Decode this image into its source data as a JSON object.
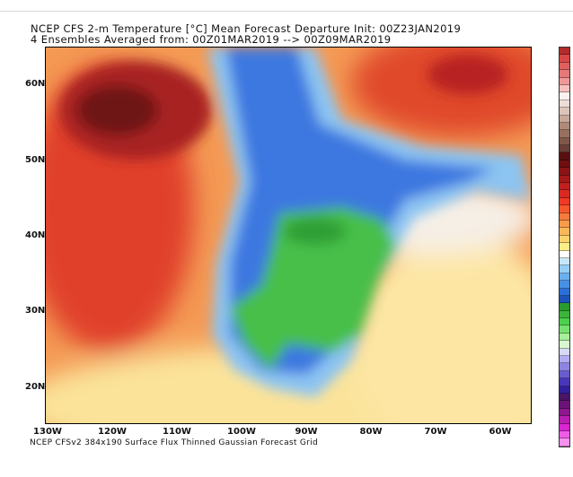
{
  "title": {
    "line1": "NCEP CFS 2-m Temperature [°C] Mean Forecast Departure Init: 00Z23JAN2019",
    "line2": "4 Ensembles Averaged from: 00Z01MAR2019 --> 00Z09MAR2019"
  },
  "footer": "NCEP CFSv2 384x190 Surface Flux Thinned Gaussian Forecast Grid",
  "lat_labels": [
    "60N",
    "50N",
    "40N",
    "30N",
    "20N"
  ],
  "lon_labels": [
    "130W",
    "120W",
    "110W",
    "100W",
    "90W",
    "80W",
    "70W",
    "60W"
  ],
  "colorbar": [
    "#b22b2b",
    "#d94848",
    "#e06060",
    "#e57878",
    "#ee9898",
    "#f6c0c0",
    "#faf0ee",
    "#eedcd6",
    "#dcc4b8",
    "#c8a898",
    "#b08a78",
    "#987060",
    "#80584a",
    "#6a4036",
    "#5a1010",
    "#6e1010",
    "#8a1414",
    "#a41a1a",
    "#c02020",
    "#d82a22",
    "#ee3a26",
    "#f4582e",
    "#f57a3c",
    "#f79a4a",
    "#f9b85a",
    "#fbd46c",
    "#fbee88",
    "#ffffff",
    "#c8e6fa",
    "#96cdf6",
    "#6ab0f0",
    "#4890e6",
    "#2c6ed8",
    "#1e54b8",
    "#2a9a2e",
    "#3cb43c",
    "#4ed04e",
    "#78e070",
    "#a8ee9c",
    "#d8f6d0",
    "#d8d8fa",
    "#b0acf0",
    "#8c84e0",
    "#6a5cd0",
    "#4a36b8",
    "#32209a",
    "#4a1666",
    "#6a1476",
    "#8c1890",
    "#b81eb0",
    "#d826d0",
    "#ee5ce6",
    "#f890ee"
  ]
}
